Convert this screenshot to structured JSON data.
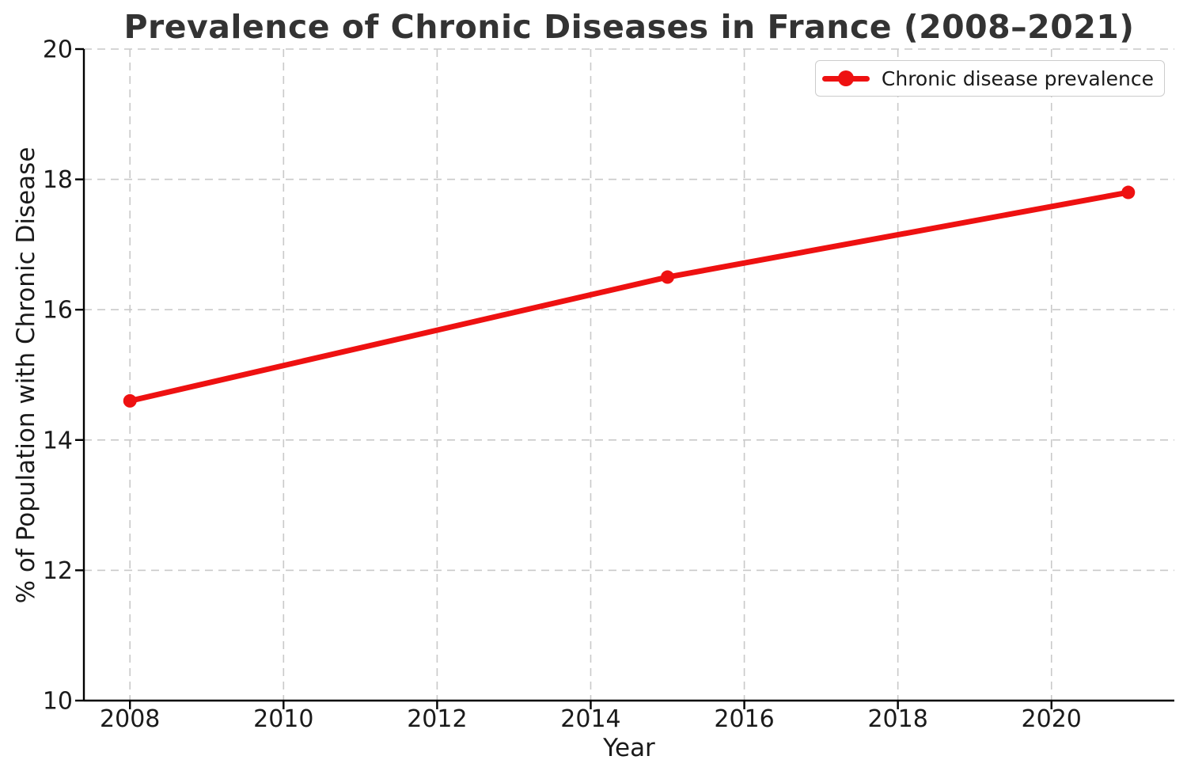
{
  "chart_data": {
    "type": "line",
    "title": "Prevalence of Chronic Diseases in France (2008–2021)",
    "xlabel": "Year",
    "ylabel": "% of Population with Chronic Disease",
    "x": [
      2008,
      2015,
      2021
    ],
    "series": [
      {
        "name": "Chronic disease prevalence",
        "values": [
          14.6,
          16.5,
          17.8
        ],
        "color": "#ee1111",
        "marker": "circle"
      }
    ],
    "xlim": [
      2007.4,
      2021.6
    ],
    "ylim": [
      10,
      20
    ],
    "xticks": [
      "2008",
      "2010",
      "2012",
      "2014",
      "2016",
      "2018",
      "2020"
    ],
    "yticks": [
      "10",
      "12",
      "14",
      "16",
      "18",
      "20"
    ],
    "grid": true,
    "grid_linestyle": "dashed",
    "legend_position": "upper right"
  },
  "legend": {
    "entries": [
      {
        "label": "Chronic disease prevalence",
        "color": "#ee1111"
      }
    ]
  },
  "colors": {
    "background": "#ffffff",
    "grid": "#c9c9c9",
    "spine": "#000000",
    "tick_text": "#1a1a1a",
    "title_text": "#333333",
    "series": "#ee1111"
  }
}
